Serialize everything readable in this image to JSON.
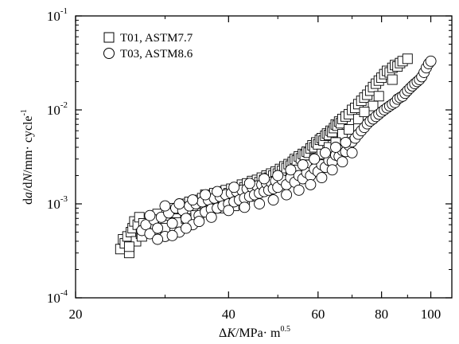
{
  "chart_data": {
    "type": "scatter",
    "x_scale": "log",
    "y_scale": "log",
    "xlim": [
      20,
      110
    ],
    "ylim": [
      0.0001,
      0.1
    ],
    "x_ticks": [
      {
        "value": 20,
        "label": "20"
      },
      {
        "value": 40,
        "label": "40"
      },
      {
        "value": 60,
        "label": "60"
      },
      {
        "value": 80,
        "label": "80"
      },
      {
        "value": 100,
        "label": "100"
      }
    ],
    "y_ticks": [
      {
        "value": 0.0001,
        "base": "10",
        "exp": "-4"
      },
      {
        "value": 0.001,
        "base": "10",
        "exp": "-3"
      },
      {
        "value": 0.01,
        "base": "10",
        "exp": "-2"
      },
      {
        "value": 0.1,
        "base": "10",
        "exp": "-1"
      }
    ],
    "xlabel": {
      "delta": "Δ",
      "var": "K",
      "unit": "/MPa· m",
      "exp": "0.5"
    },
    "ylabel": {
      "a1": "d",
      "a2": "a",
      "a3": "/d",
      "a4": "N",
      "a5": "/mm· cycle",
      "exp": "-1"
    },
    "grid": false,
    "legend_position": "top-left",
    "series": [
      {
        "name": "T01, ASTM7.7",
        "marker": "square",
        "points": [
          [
            24.5,
            0.00033
          ],
          [
            24.8,
            0.00042
          ],
          [
            25.0,
            0.00038
          ],
          [
            25.3,
            0.00045
          ],
          [
            25.5,
            0.0003
          ],
          [
            25.7,
            0.0005
          ],
          [
            25.9,
            0.00055
          ],
          [
            26.1,
            0.00065
          ],
          [
            26.3,
            0.0004
          ],
          [
            26.5,
            0.0006
          ],
          [
            26.7,
            0.00072
          ],
          [
            26.9,
            0.00048
          ],
          [
            27.2,
            0.00062
          ],
          [
            27.5,
            0.00052
          ],
          [
            27.8,
            0.00058
          ],
          [
            28.1,
            0.00066
          ],
          [
            28.4,
            0.0007
          ],
          [
            28.7,
            0.00055
          ],
          [
            29.0,
            0.00078
          ],
          [
            29.4,
            0.00068
          ],
          [
            29.8,
            0.0006
          ],
          [
            30.2,
            0.00084
          ],
          [
            30.6,
            0.00075
          ],
          [
            31.0,
            0.0009
          ],
          [
            31.5,
            0.0008
          ],
          [
            32.0,
            0.00088
          ],
          [
            32.5,
            0.001
          ],
          [
            33.0,
            0.00085
          ],
          [
            33.5,
            0.00105
          ],
          [
            34.0,
            0.00095
          ],
          [
            34.5,
            0.0011
          ],
          [
            35.0,
            0.001
          ],
          [
            35.5,
            0.00115
          ],
          [
            36.0,
            0.00125
          ],
          [
            36.5,
            0.00105
          ],
          [
            37.0,
            0.00118
          ],
          [
            37.5,
            0.0013
          ],
          [
            38.0,
            0.0012
          ],
          [
            38.5,
            0.00135
          ],
          [
            39.0,
            0.00115
          ],
          [
            39.5,
            0.0014
          ],
          [
            40.0,
            0.0013
          ],
          [
            40.5,
            0.00145
          ],
          [
            41.0,
            0.00125
          ],
          [
            41.5,
            0.0015
          ],
          [
            42.0,
            0.0014
          ],
          [
            42.5,
            0.0016
          ],
          [
            43.0,
            0.0015
          ],
          [
            43.5,
            0.00165
          ],
          [
            44.0,
            0.00155
          ],
          [
            44.5,
            0.00175
          ],
          [
            45.0,
            0.00165
          ],
          [
            45.5,
            0.0018
          ],
          [
            46.0,
            0.0017
          ],
          [
            46.5,
            0.0019
          ],
          [
            47.0,
            0.0018
          ],
          [
            47.5,
            0.002
          ],
          [
            48.0,
            0.0019
          ],
          [
            48.5,
            0.0021
          ],
          [
            49.0,
            0.002
          ],
          [
            49.5,
            0.0022
          ],
          [
            50.0,
            0.0021
          ],
          [
            50.5,
            0.00235
          ],
          [
            51.0,
            0.00225
          ],
          [
            51.5,
            0.0025
          ],
          [
            52.0,
            0.0024
          ],
          [
            52.5,
            0.00265
          ],
          [
            53.0,
            0.00255
          ],
          [
            53.5,
            0.0028
          ],
          [
            54.0,
            0.003
          ],
          [
            54.5,
            0.0029
          ],
          [
            55.0,
            0.0032
          ],
          [
            55.5,
            0.00305
          ],
          [
            56.0,
            0.0034
          ],
          [
            56.5,
            0.0033
          ],
          [
            57.0,
            0.0036
          ],
          [
            57.5,
            0.0035
          ],
          [
            58.0,
            0.0039
          ],
          [
            58.5,
            0.0042
          ],
          [
            59.0,
            0.004
          ],
          [
            59.5,
            0.0045
          ],
          [
            60.0,
            0.0043
          ],
          [
            60.5,
            0.0048
          ],
          [
            61.0,
            0.005
          ],
          [
            61.5,
            0.0047
          ],
          [
            62.0,
            0.0053
          ],
          [
            62.5,
            0.0056
          ],
          [
            63.0,
            0.0054
          ],
          [
            63.5,
            0.006
          ],
          [
            64.0,
            0.0058
          ],
          [
            64.5,
            0.0064
          ],
          [
            65.0,
            0.007
          ],
          [
            65.5,
            0.0068
          ],
          [
            66.0,
            0.0075
          ],
          [
            66.5,
            0.0072
          ],
          [
            67.0,
            0.008
          ],
          [
            68.0,
            0.0085
          ],
          [
            69.0,
            0.009
          ],
          [
            70.0,
            0.01
          ],
          [
            71.0,
            0.0105
          ],
          [
            72.0,
            0.0115
          ],
          [
            73.0,
            0.0125
          ],
          [
            74.0,
            0.0135
          ],
          [
            75.0,
            0.0145
          ],
          [
            76.0,
            0.016
          ],
          [
            77.0,
            0.0175
          ],
          [
            78.0,
            0.019
          ],
          [
            79.0,
            0.0205
          ],
          [
            80.0,
            0.022
          ],
          [
            81.0,
            0.024
          ],
          [
            82.0,
            0.026
          ],
          [
            83.0,
            0.025
          ],
          [
            84.0,
            0.028
          ],
          [
            85.0,
            0.03
          ],
          [
            86.0,
            0.029
          ],
          [
            87.0,
            0.0315
          ],
          [
            88.0,
            0.033
          ],
          [
            90.0,
            0.035
          ],
          [
            39.0,
            0.0009
          ],
          [
            43.0,
            0.0011
          ],
          [
            47.0,
            0.0014
          ],
          [
            51.0,
            0.0017
          ],
          [
            55.0,
            0.0023
          ],
          [
            59.0,
            0.003
          ],
          [
            63.0,
            0.004
          ],
          [
            67.0,
            0.0055
          ],
          [
            72.0,
            0.008
          ],
          [
            77.0,
            0.011
          ],
          [
            36.0,
            0.00085
          ],
          [
            33.0,
            0.0007
          ],
          [
            30.0,
            0.00055
          ],
          [
            27.0,
            0.00045
          ],
          [
            25.5,
            0.00035
          ],
          [
            41.0,
            0.00095
          ],
          [
            45.0,
            0.0012
          ],
          [
            49.0,
            0.00155
          ],
          [
            53.0,
            0.00195
          ],
          [
            57.0,
            0.0026
          ],
          [
            61.0,
            0.0034
          ],
          [
            65.0,
            0.0045
          ],
          [
            69.0,
            0.0062
          ],
          [
            74.0,
            0.0095
          ],
          [
            79.0,
            0.014
          ],
          [
            84.0,
            0.021
          ]
        ]
      },
      {
        "name": "T03, ASTM8.6",
        "marker": "circle",
        "points": [
          [
            27.0,
            0.00052
          ],
          [
            27.5,
            0.0006
          ],
          [
            28.0,
            0.00048
          ],
          [
            28.5,
            0.00068
          ],
          [
            29.0,
            0.00055
          ],
          [
            29.5,
            0.00072
          ],
          [
            30.0,
            0.00045
          ],
          [
            30.5,
            0.0008
          ],
          [
            31.0,
            0.00062
          ],
          [
            31.5,
            0.0009
          ],
          [
            32.0,
            0.0005
          ],
          [
            32.5,
            0.00085
          ],
          [
            33.0,
            0.0007
          ],
          [
            33.5,
            0.00095
          ],
          [
            34.0,
            0.0006
          ],
          [
            34.5,
            0.001
          ],
          [
            35.0,
            0.00075
          ],
          [
            35.5,
            0.00105
          ],
          [
            36.0,
            0.00082
          ],
          [
            36.5,
            0.0011
          ],
          [
            37.0,
            0.00088
          ],
          [
            37.5,
            0.00115
          ],
          [
            38.0,
            0.0009
          ],
          [
            38.5,
            0.0012
          ],
          [
            39.0,
            0.00095
          ],
          [
            39.5,
            0.00125
          ],
          [
            40.0,
            0.001
          ],
          [
            40.5,
            0.0013
          ],
          [
            41.0,
            0.00105
          ],
          [
            41.5,
            0.00135
          ],
          [
            42.0,
            0.0011
          ],
          [
            42.5,
            0.0014
          ],
          [
            43.0,
            0.00115
          ],
          [
            43.5,
            0.00145
          ],
          [
            44.0,
            0.0012
          ],
          [
            44.5,
            0.0015
          ],
          [
            45.0,
            0.00125
          ],
          [
            45.5,
            0.00155
          ],
          [
            46.0,
            0.0013
          ],
          [
            46.5,
            0.0016
          ],
          [
            47.0,
            0.00135
          ],
          [
            47.5,
            0.00165
          ],
          [
            48.0,
            0.0014
          ],
          [
            48.5,
            0.0017
          ],
          [
            49.0,
            0.00145
          ],
          [
            49.5,
            0.00175
          ],
          [
            50.0,
            0.0015
          ],
          [
            51.0,
            0.0018
          ],
          [
            52.0,
            0.0016
          ],
          [
            53.0,
            0.0019
          ],
          [
            54.0,
            0.0017
          ],
          [
            55.0,
            0.002
          ],
          [
            56.0,
            0.00185
          ],
          [
            57.0,
            0.00215
          ],
          [
            58.0,
            0.002
          ],
          [
            59.0,
            0.00235
          ],
          [
            60.0,
            0.0022
          ],
          [
            61.0,
            0.0026
          ],
          [
            62.0,
            0.00245
          ],
          [
            63.0,
            0.0029
          ],
          [
            64.0,
            0.0028
          ],
          [
            65.0,
            0.0033
          ],
          [
            66.0,
            0.0032
          ],
          [
            67.0,
            0.0037
          ],
          [
            68.0,
            0.0036
          ],
          [
            69.0,
            0.0042
          ],
          [
            70.0,
            0.0046
          ],
          [
            71.0,
            0.005
          ],
          [
            72.0,
            0.0055
          ],
          [
            73.0,
            0.006
          ],
          [
            74.0,
            0.0065
          ],
          [
            75.0,
            0.0071
          ],
          [
            76.0,
            0.0076
          ],
          [
            77.0,
            0.008
          ],
          [
            78.0,
            0.0085
          ],
          [
            79.0,
            0.009
          ],
          [
            80.0,
            0.0095
          ],
          [
            81.0,
            0.01
          ],
          [
            82.0,
            0.0105
          ],
          [
            83.0,
            0.011
          ],
          [
            84.0,
            0.0115
          ],
          [
            85.0,
            0.012
          ],
          [
            86.0,
            0.013
          ],
          [
            87.0,
            0.0135
          ],
          [
            88.0,
            0.014
          ],
          [
            89.0,
            0.015
          ],
          [
            90.0,
            0.016
          ],
          [
            91.0,
            0.017
          ],
          [
            92.0,
            0.018
          ],
          [
            93.0,
            0.019
          ],
          [
            94.0,
            0.02
          ],
          [
            95.0,
            0.021
          ],
          [
            96.0,
            0.0225
          ],
          [
            97.0,
            0.025
          ],
          [
            98.0,
            0.028
          ],
          [
            99.0,
            0.031
          ],
          [
            100.0,
            0.033
          ],
          [
            29.0,
            0.00042
          ],
          [
            31.0,
            0.00046
          ],
          [
            33.0,
            0.00055
          ],
          [
            35.0,
            0.00065
          ],
          [
            37.0,
            0.00072
          ],
          [
            40.0,
            0.00085
          ],
          [
            43.0,
            0.00092
          ],
          [
            46.0,
            0.001
          ],
          [
            49.0,
            0.0011
          ],
          [
            52.0,
            0.00125
          ],
          [
            55.0,
            0.0014
          ],
          [
            58.0,
            0.0016
          ],
          [
            61.0,
            0.0019
          ],
          [
            64.0,
            0.0023
          ],
          [
            67.0,
            0.0028
          ],
          [
            70.0,
            0.0035
          ],
          [
            28.0,
            0.00075
          ],
          [
            30.0,
            0.00095
          ],
          [
            32.0,
            0.001
          ],
          [
            34.0,
            0.0011
          ],
          [
            36.0,
            0.00125
          ],
          [
            38.0,
            0.00135
          ],
          [
            41.0,
            0.0015
          ],
          [
            44.0,
            0.00165
          ],
          [
            47.0,
            0.00185
          ],
          [
            50.0,
            0.002
          ],
          [
            53.0,
            0.0023
          ],
          [
            56.0,
            0.0026
          ],
          [
            59.0,
            0.003
          ],
          [
            62.0,
            0.0035
          ],
          [
            65.0,
            0.004
          ],
          [
            68.0,
            0.0045
          ]
        ]
      }
    ]
  }
}
